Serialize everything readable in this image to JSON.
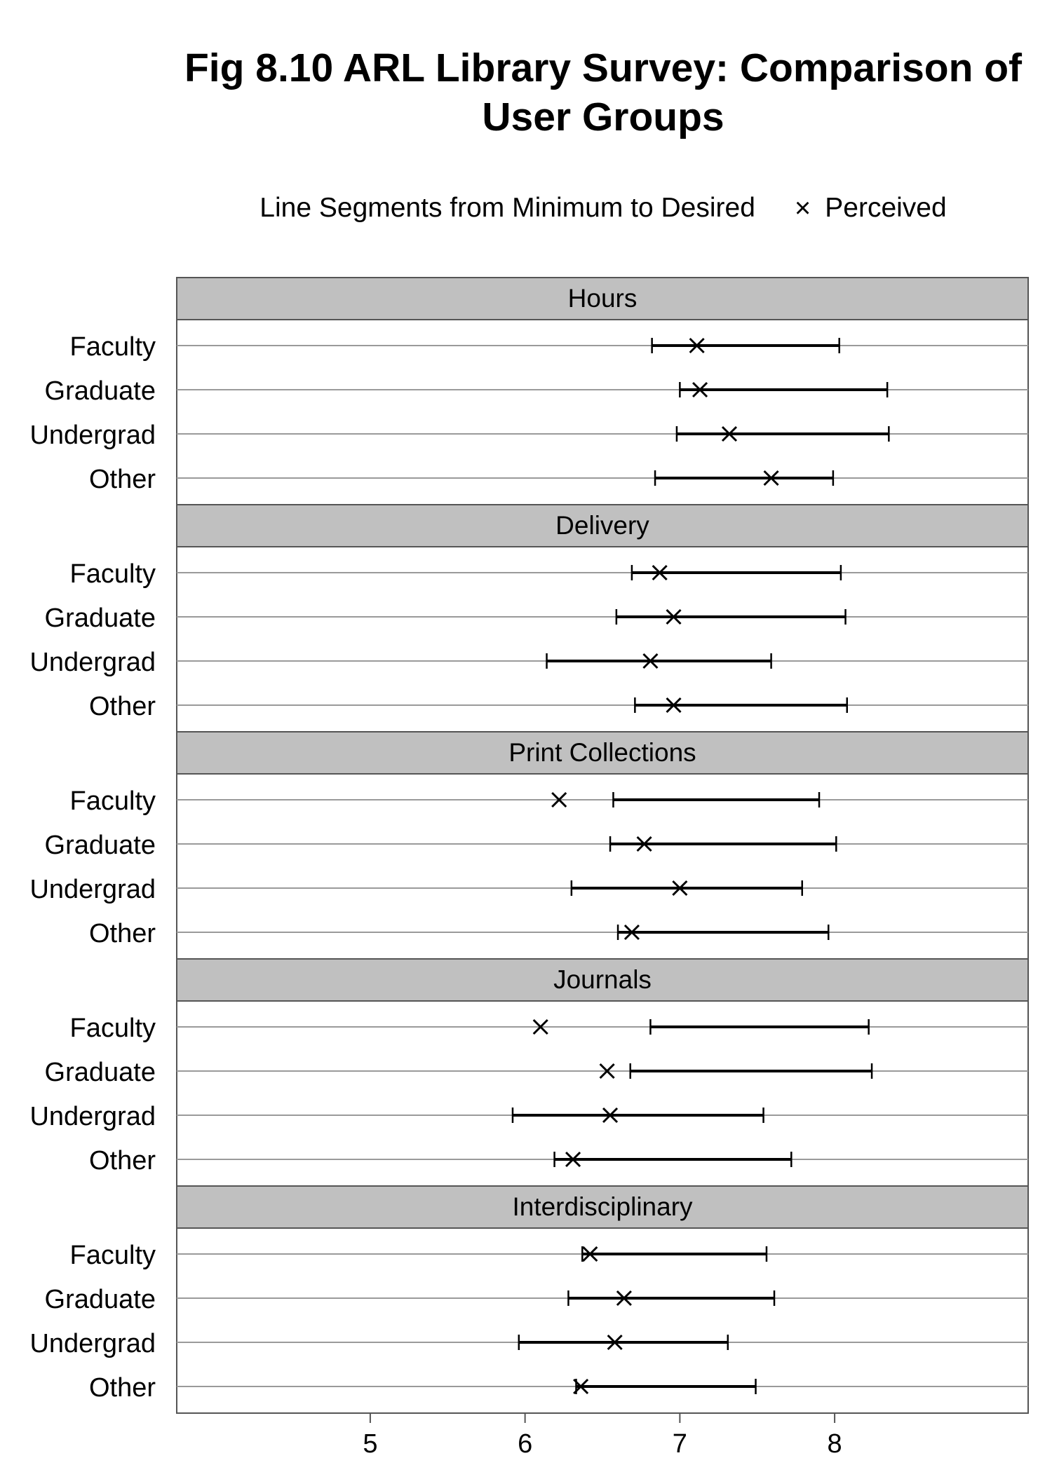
{
  "chart_data": {
    "type": "dot-range",
    "title": "Fig 8.10 ARL Library Survey: Comparison of User Groups",
    "legend": {
      "position": "top",
      "segment_label": "Line Segments from Minimum to Desired",
      "point_symbol": "×",
      "point_label": "Perceived"
    },
    "groups": [
      "Faculty",
      "Graduate",
      "Undergrad",
      "Other"
    ],
    "x_ticks": [
      5,
      6,
      7,
      8
    ],
    "xlim": [
      3.75,
      9.25
    ],
    "panels": [
      {
        "name": "Hours",
        "rows": [
          {
            "group": "Faculty",
            "minimum": 6.82,
            "desired": 8.03,
            "perceived": 7.11
          },
          {
            "group": "Graduate",
            "minimum": 7.0,
            "desired": 8.34,
            "perceived": 7.13
          },
          {
            "group": "Undergrad",
            "minimum": 6.98,
            "desired": 8.35,
            "perceived": 7.32
          },
          {
            "group": "Other",
            "minimum": 6.84,
            "desired": 7.99,
            "perceived": 7.59
          }
        ]
      },
      {
        "name": "Delivery",
        "rows": [
          {
            "group": "Faculty",
            "minimum": 6.69,
            "desired": 8.04,
            "perceived": 6.87
          },
          {
            "group": "Graduate",
            "minimum": 6.59,
            "desired": 8.07,
            "perceived": 6.96
          },
          {
            "group": "Undergrad",
            "minimum": 6.14,
            "desired": 7.59,
            "perceived": 6.81
          },
          {
            "group": "Other",
            "minimum": 6.71,
            "desired": 8.08,
            "perceived": 6.96
          }
        ]
      },
      {
        "name": "Print Collections",
        "rows": [
          {
            "group": "Faculty",
            "minimum": 6.57,
            "desired": 7.9,
            "perceived": 6.22
          },
          {
            "group": "Graduate",
            "minimum": 6.55,
            "desired": 8.01,
            "perceived": 6.77
          },
          {
            "group": "Undergrad",
            "minimum": 6.3,
            "desired": 7.79,
            "perceived": 7.0
          },
          {
            "group": "Other",
            "minimum": 6.6,
            "desired": 7.96,
            "perceived": 6.69
          }
        ]
      },
      {
        "name": "Journals",
        "rows": [
          {
            "group": "Faculty",
            "minimum": 6.81,
            "desired": 8.22,
            "perceived": 6.1
          },
          {
            "group": "Graduate",
            "minimum": 6.68,
            "desired": 8.24,
            "perceived": 6.53
          },
          {
            "group": "Undergrad",
            "minimum": 5.92,
            "desired": 7.54,
            "perceived": 6.55
          },
          {
            "group": "Other",
            "minimum": 6.19,
            "desired": 7.72,
            "perceived": 6.31
          }
        ]
      },
      {
        "name": "Interdisciplinary",
        "rows": [
          {
            "group": "Faculty",
            "minimum": 6.37,
            "desired": 7.56,
            "perceived": 6.42
          },
          {
            "group": "Graduate",
            "minimum": 6.28,
            "desired": 7.61,
            "perceived": 6.64
          },
          {
            "group": "Undergrad",
            "minimum": 5.96,
            "desired": 7.31,
            "perceived": 6.58
          },
          {
            "group": "Other",
            "minimum": 6.33,
            "desired": 7.49,
            "perceived": 6.36
          }
        ]
      }
    ],
    "colors": {
      "segment": "#000000",
      "strip": "#c0c0c0",
      "grid": "#9a9a9a",
      "frame": "#555555"
    }
  }
}
